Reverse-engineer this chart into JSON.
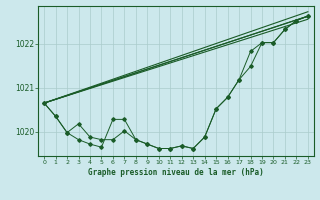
{
  "title": "Graphe pression niveau de la mer (hPa)",
  "background_color": "#cce8ec",
  "grid_color": "#aacccc",
  "line_color": "#1a5c28",
  "text_color": "#1a5c28",
  "xlim": [
    -0.5,
    23.5
  ],
  "ylim": [
    1019.45,
    1022.85
  ],
  "yticks": [
    1020,
    1021,
    1022
  ],
  "xticks": [
    0,
    1,
    2,
    3,
    4,
    5,
    6,
    7,
    8,
    9,
    10,
    11,
    12,
    13,
    14,
    15,
    16,
    17,
    18,
    19,
    20,
    21,
    22,
    23
  ],
  "hours": [
    0,
    1,
    2,
    3,
    4,
    5,
    6,
    7,
    8,
    9,
    10,
    11,
    12,
    13,
    14,
    15,
    16,
    17,
    18,
    19,
    20,
    21,
    22,
    23
  ],
  "line1": [
    1020.65,
    1020.35,
    1019.98,
    1019.82,
    1019.72,
    1019.65,
    1020.28,
    1020.28,
    1019.82,
    1019.72,
    1019.62,
    1019.62,
    1019.68,
    1019.62,
    1019.88,
    1020.52,
    1020.78,
    1021.18,
    1021.82,
    1022.02,
    1022.02,
    1022.32,
    1022.52,
    1022.62
  ],
  "line2": [
    1020.65,
    1020.35,
    1019.98,
    1020.18,
    1019.88,
    1019.82,
    1019.82,
    1020.02,
    1019.82,
    1019.72,
    1019.62,
    1019.62,
    1019.68,
    1019.62,
    1019.88,
    1020.52,
    1020.78,
    1021.18,
    1021.48,
    1022.02,
    1022.02,
    1022.32,
    1022.52,
    1022.62
  ],
  "line3_x": [
    0,
    23
  ],
  "line3_y": [
    1020.65,
    1022.62
  ],
  "line4_x": [
    0,
    23
  ],
  "line4_y": [
    1020.65,
    1022.62
  ]
}
